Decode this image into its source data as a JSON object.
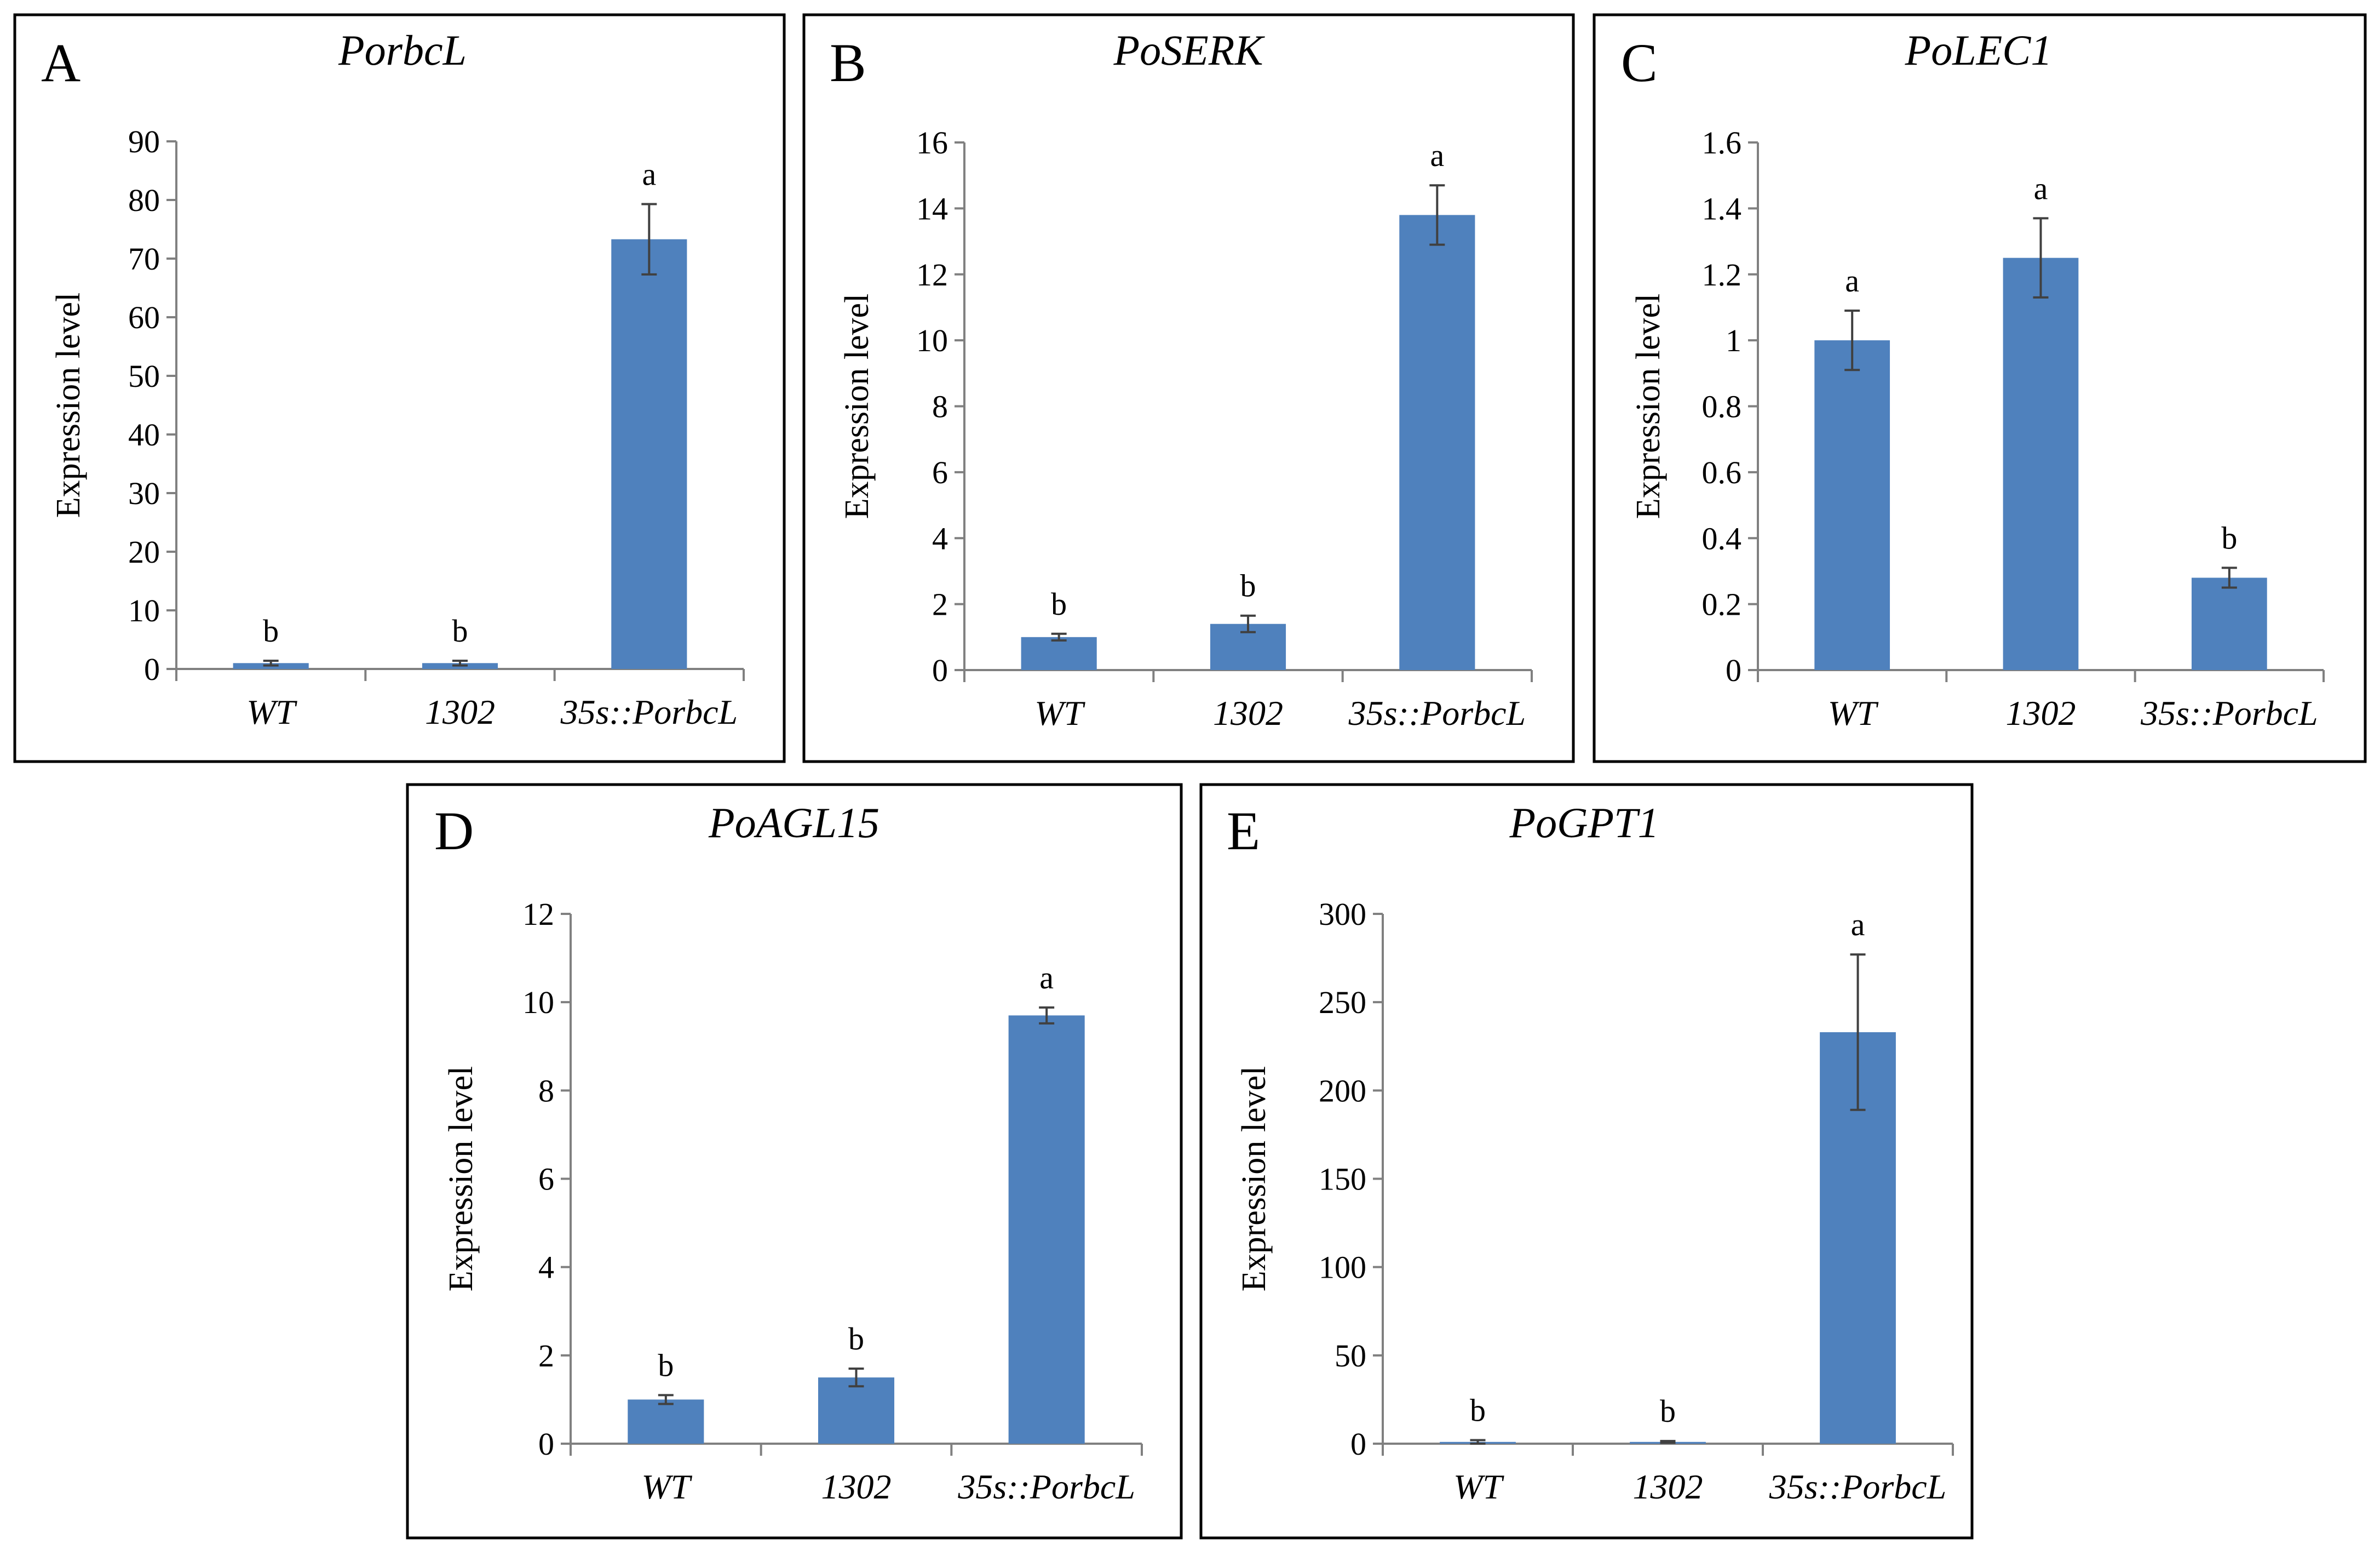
{
  "figure": {
    "bar_color": "#4F81BD",
    "error_color": "#404040",
    "axis_color": "#808080",
    "frame_color": "#000000"
  },
  "chart_data": [
    {
      "type": "bar",
      "panel": "A",
      "title": "PorbcL",
      "ylabel": "Expression level",
      "xlabel": "",
      "categories": [
        "WT",
        "1302",
        "35s::PorbcL"
      ],
      "values": [
        1.0,
        1.0,
        73.3
      ],
      "errors": [
        0.4,
        0.4,
        6.0
      ],
      "significance": [
        "b",
        "b",
        "a"
      ],
      "ylim": [
        0,
        90
      ],
      "yticks": [
        0,
        10,
        20,
        30,
        40,
        50,
        60,
        70,
        80,
        90
      ],
      "ytick_labels": [
        "0",
        "10",
        "20",
        "30",
        "40",
        "50",
        "60",
        "70",
        "80",
        "90"
      ]
    },
    {
      "type": "bar",
      "panel": "B",
      "title": "PoSERK",
      "ylabel": "Expression level",
      "xlabel": "",
      "categories": [
        "WT",
        "1302",
        "35s::PorbcL"
      ],
      "values": [
        1.0,
        1.4,
        13.8
      ],
      "errors": [
        0.1,
        0.25,
        0.9
      ],
      "significance": [
        "b",
        "b",
        "a"
      ],
      "ylim": [
        0,
        16
      ],
      "yticks": [
        0,
        2,
        4,
        6,
        8,
        10,
        12,
        14,
        16
      ],
      "ytick_labels": [
        "0",
        "2",
        "4",
        "6",
        "8",
        "10",
        "12",
        "14",
        "16"
      ]
    },
    {
      "type": "bar",
      "panel": "C",
      "title": "PoLEC1",
      "ylabel": "Expression level",
      "xlabel": "",
      "categories": [
        "WT",
        "1302",
        "35s::PorbcL"
      ],
      "values": [
        1.0,
        1.25,
        0.28
      ],
      "errors": [
        0.09,
        0.12,
        0.03
      ],
      "significance": [
        "a",
        "a",
        "b"
      ],
      "ylim": [
        0,
        1.6
      ],
      "yticks": [
        0,
        0.2,
        0.4,
        0.6,
        0.8,
        1.0,
        1.2,
        1.4,
        1.6
      ],
      "ytick_labels": [
        "0",
        "0.2",
        "0.4",
        "0.6",
        "0.8",
        "1",
        "1.2",
        "1.4",
        "1.6"
      ]
    },
    {
      "type": "bar",
      "panel": "D",
      "title": "PoAGL15",
      "ylabel": "Expression level",
      "xlabel": "",
      "categories": [
        "WT",
        "1302",
        "35s::PorbcL"
      ],
      "values": [
        1.0,
        1.5,
        9.7
      ],
      "errors": [
        0.1,
        0.2,
        0.18
      ],
      "significance": [
        "b",
        "b",
        "a"
      ],
      "ylim": [
        0,
        12
      ],
      "yticks": [
        0,
        2,
        4,
        6,
        8,
        10,
        12
      ],
      "ytick_labels": [
        "0",
        "2",
        "4",
        "6",
        "8",
        "10",
        "12"
      ]
    },
    {
      "type": "bar",
      "panel": "E",
      "title": "PoGPT1",
      "ylabel": "Expression level",
      "xlabel": "",
      "categories": [
        "WT",
        "1302",
        "35s::PorbcL"
      ],
      "values": [
        1.0,
        1.0,
        233
      ],
      "errors": [
        1.0,
        0.5,
        44
      ],
      "significance": [
        "b",
        "b",
        "a"
      ],
      "ylim": [
        0,
        300
      ],
      "yticks": [
        0,
        50,
        100,
        150,
        200,
        250,
        300
      ],
      "ytick_labels": [
        "0",
        "50",
        "100",
        "150",
        "200",
        "250",
        "300"
      ]
    }
  ]
}
